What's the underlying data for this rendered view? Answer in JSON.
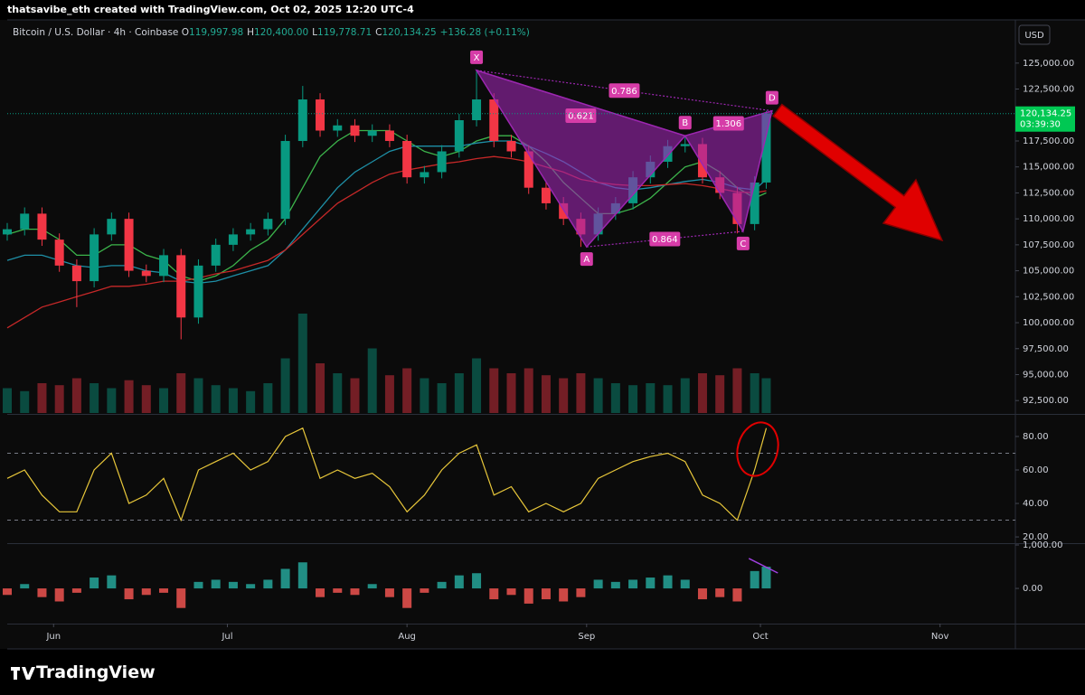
{
  "header": {
    "text": "thatsavibe_eth created with TradingView.com, Oct 02, 2025 12:20 UTC-4"
  },
  "chart_data": [
    {
      "type": "candlestick",
      "title": "Bitcoin / U.S. Dollar · 4h · Coinbase",
      "ohlc_legend": [
        {
          "key": "O",
          "value": "119,997.98"
        },
        {
          "key": "H",
          "value": "120,400.00"
        },
        {
          "key": "L",
          "value": "119,778.71"
        },
        {
          "key": "C",
          "value": "120,134.25"
        }
      ],
      "change": "+136.28 (+0.11%)",
      "currency": "USD",
      "x": [
        0,
        3,
        6,
        9,
        12,
        15,
        18,
        21,
        24,
        27,
        30,
        33,
        36,
        39,
        42,
        45,
        48,
        51,
        54,
        57,
        60,
        63,
        66,
        69,
        72,
        75,
        78,
        81,
        84,
        87,
        90,
        93,
        96,
        99,
        102,
        105,
        108,
        111,
        114,
        117,
        120,
        123,
        126,
        129,
        131
      ],
      "xlim": [
        0,
        174
      ],
      "xticks": [
        {
          "value": 8,
          "label": "Jun"
        },
        {
          "value": 38,
          "label": "Jul"
        },
        {
          "value": 69,
          "label": "Aug"
        },
        {
          "value": 100,
          "label": "Sep"
        },
        {
          "value": 130,
          "label": "Oct"
        },
        {
          "value": 161,
          "label": "Nov"
        }
      ],
      "ylim": [
        91300,
        128900
      ],
      "yticks": [
        {
          "value": 92500,
          "label": "92,500.00"
        },
        {
          "value": 95000,
          "label": "95,000.00"
        },
        {
          "value": 97500,
          "label": "97,500.00"
        },
        {
          "value": 100000,
          "label": "100,000.00"
        },
        {
          "value": 102500,
          "label": "102,500.00"
        },
        {
          "value": 105000,
          "label": "105,000.00"
        },
        {
          "value": 107500,
          "label": "107,500.00"
        },
        {
          "value": 110000,
          "label": "110,000.00"
        },
        {
          "value": 112500,
          "label": "112,500.00"
        },
        {
          "value": 115000,
          "label": "115,000.00"
        },
        {
          "value": 117500,
          "label": "117,500.00"
        },
        {
          "value": 122500,
          "label": "122,500.00"
        },
        {
          "value": 125000,
          "label": "125,000.00"
        }
      ],
      "up_color": "#089981",
      "down_color": "#f23645",
      "open": [
        108500,
        109000,
        110500,
        108000,
        105500,
        104000,
        108500,
        110000,
        105000,
        104500,
        106500,
        100500,
        105500,
        107500,
        108500,
        109000,
        110000,
        117500,
        121500,
        118500,
        119000,
        118000,
        118500,
        117500,
        114000,
        114500,
        116500,
        119500,
        121500,
        117500,
        116500,
        113000,
        111500,
        110000,
        108500,
        110500,
        111500,
        114000,
        115500,
        117000,
        117200,
        114000,
        112500,
        109500,
        113500
      ],
      "high": [
        109600,
        111100,
        111100,
        108600,
        106100,
        109100,
        110600,
        110600,
        105600,
        107100,
        107100,
        106100,
        108100,
        109100,
        109600,
        110600,
        118100,
        122800,
        122100,
        119600,
        119600,
        119100,
        119100,
        118100,
        115100,
        117100,
        120100,
        124300,
        122100,
        118100,
        117100,
        113600,
        112100,
        110600,
        111100,
        112100,
        114600,
        116100,
        117600,
        118000,
        117800,
        114600,
        113100,
        114100,
        120400
      ],
      "low": [
        107900,
        108400,
        107400,
        104900,
        101500,
        103400,
        107900,
        104400,
        103900,
        103900,
        98400,
        99900,
        104900,
        106900,
        107900,
        108400,
        109400,
        116900,
        117900,
        117900,
        117400,
        117400,
        116900,
        113400,
        113400,
        113900,
        115900,
        118900,
        116900,
        115900,
        112400,
        110900,
        109400,
        107300,
        107900,
        109900,
        110900,
        113400,
        114900,
        116400,
        113400,
        111900,
        108600,
        108900,
        112900
      ],
      "close": [
        109000,
        110500,
        108000,
        105500,
        104000,
        108500,
        110000,
        105000,
        104500,
        106500,
        100500,
        105500,
        107500,
        108500,
        109000,
        110000,
        117500,
        121500,
        118500,
        119000,
        118000,
        118500,
        117500,
        114000,
        114500,
        116500,
        119500,
        121500,
        117500,
        116500,
        113000,
        111500,
        110000,
        108500,
        110500,
        111500,
        114000,
        115500,
        117000,
        117200,
        114000,
        112500,
        109500,
        113500,
        120134.25
      ],
      "volume": {
        "ylim": [
          0,
          100
        ],
        "values": [
          25,
          22,
          30,
          28,
          35,
          30,
          25,
          33,
          28,
          25,
          40,
          35,
          28,
          25,
          22,
          30,
          55,
          100,
          50,
          40,
          35,
          65,
          38,
          45,
          35,
          30,
          40,
          55,
          45,
          40,
          45,
          38,
          35,
          40,
          35,
          30,
          28,
          30,
          28,
          35,
          40,
          38,
          45,
          40,
          35
        ]
      },
      "moving_averages": [
        {
          "color": "#3cb44b",
          "values": [
            108500,
            109000,
            109000,
            108000,
            106500,
            106500,
            107500,
            107500,
            106500,
            106000,
            104500,
            104000,
            104500,
            105500,
            107000,
            108000,
            110000,
            113000,
            116000,
            117500,
            118500,
            118500,
            118500,
            117500,
            116500,
            116000,
            116500,
            117500,
            118000,
            118000,
            117000,
            115500,
            113500,
            112000,
            110500,
            110500,
            111000,
            112000,
            113500,
            115000,
            115500,
            114500,
            113000,
            112000,
            112500
          ]
        },
        {
          "color": "#1e8fa6",
          "values": [
            106000,
            106500,
            106500,
            106000,
            105500,
            105300,
            105500,
            105500,
            105000,
            104800,
            104000,
            103800,
            104000,
            104500,
            105000,
            105500,
            107000,
            109000,
            111000,
            113000,
            114500,
            115500,
            116500,
            117000,
            117000,
            117000,
            117000,
            117300,
            117500,
            117500,
            117000,
            116300,
            115500,
            114500,
            113500,
            113000,
            112800,
            113000,
            113300,
            113600,
            113800,
            113500,
            113000,
            112800,
            113800
          ]
        },
        {
          "color": "#c62828",
          "values": [
            99500,
            100500,
            101500,
            102000,
            102500,
            103000,
            103500,
            103500,
            103700,
            104000,
            104000,
            104300,
            104700,
            105000,
            105500,
            106000,
            107000,
            108500,
            110000,
            111500,
            112500,
            113500,
            114300,
            114700,
            115000,
            115300,
            115500,
            115800,
            116000,
            115800,
            115500,
            115000,
            114500,
            113800,
            113500,
            113300,
            113200,
            113200,
            113300,
            113400,
            113200,
            112900,
            112600,
            112500,
            112700
          ]
        }
      ],
      "pattern": {
        "color": "#9c27b0",
        "label_color": "#d63ca8",
        "points": [
          {
            "label": "X",
            "x": 81,
            "y": 124300
          },
          {
            "label": "A",
            "x": 100,
            "y": 107300
          },
          {
            "label": "B",
            "x": 117,
            "y": 118000
          },
          {
            "label": "C",
            "x": 127,
            "y": 108800
          },
          {
            "label": "D",
            "x": 132,
            "y": 120400
          }
        ],
        "ratios": [
          "0.621",
          "0.786",
          "1.306",
          "0.864"
        ]
      },
      "last_price": {
        "value": 120134.25,
        "label": "120,134.25"
      },
      "countdown": "03:39:30"
    },
    {
      "type": "line",
      "color": "#e8c73a",
      "x": [
        0,
        3,
        6,
        9,
        12,
        15,
        18,
        21,
        24,
        27,
        30,
        33,
        36,
        39,
        42,
        45,
        48,
        51,
        54,
        57,
        60,
        63,
        66,
        69,
        72,
        75,
        78,
        81,
        84,
        87,
        90,
        93,
        96,
        99,
        102,
        105,
        108,
        111,
        114,
        117,
        120,
        123,
        126,
        129,
        131
      ],
      "xlim": [
        0,
        174
      ],
      "values": [
        55,
        60,
        45,
        35,
        35,
        60,
        70,
        40,
        45,
        55,
        30,
        60,
        65,
        70,
        60,
        65,
        80,
        85,
        55,
        60,
        55,
        58,
        50,
        35,
        45,
        60,
        70,
        75,
        45,
        50,
        35,
        40,
        35,
        40,
        55,
        60,
        65,
        68,
        70,
        65,
        45,
        40,
        30,
        60,
        85
      ],
      "ylim": [
        16.8,
        92.4
      ],
      "yticks": [
        {
          "value": 80,
          "label": "80.00"
        },
        {
          "value": 60,
          "label": "60.00"
        },
        {
          "value": 40,
          "label": "40.00"
        },
        {
          "value": 20,
          "label": "20.00"
        }
      ],
      "bands": [
        30,
        70
      ]
    },
    {
      "type": "bar",
      "positive_color": "#26a69a",
      "negative_color": "#ef5350",
      "x": [
        0,
        3,
        6,
        9,
        12,
        15,
        18,
        21,
        24,
        27,
        30,
        33,
        36,
        39,
        42,
        45,
        48,
        51,
        54,
        57,
        60,
        63,
        66,
        69,
        72,
        75,
        78,
        81,
        84,
        87,
        90,
        93,
        96,
        99,
        102,
        105,
        108,
        111,
        114,
        117,
        120,
        123,
        126,
        129,
        131
      ],
      "xlim": [
        0,
        174
      ],
      "values": [
        -150,
        100,
        -200,
        -300,
        -100,
        250,
        300,
        -250,
        -150,
        -100,
        -450,
        150,
        200,
        150,
        100,
        200,
        450,
        600,
        -200,
        -100,
        -150,
        100,
        -200,
        -450,
        -100,
        150,
        300,
        350,
        -250,
        -150,
        -350,
        -250,
        -300,
        -200,
        200,
        150,
        200,
        250,
        300,
        200,
        -250,
        -200,
        -300,
        400,
        500
      ],
      "ylim": [
        -810,
        1000
      ],
      "yticks": [
        {
          "value": 1000,
          "label": "1,000.00"
        },
        {
          "value": 0,
          "label": "0.00"
        }
      ],
      "trend_line": {
        "color": "#a040e0",
        "x": [
          128,
          133
        ],
        "y": [
          690,
          355
        ]
      }
    }
  ],
  "footer": {
    "brand": "TradingView"
  }
}
